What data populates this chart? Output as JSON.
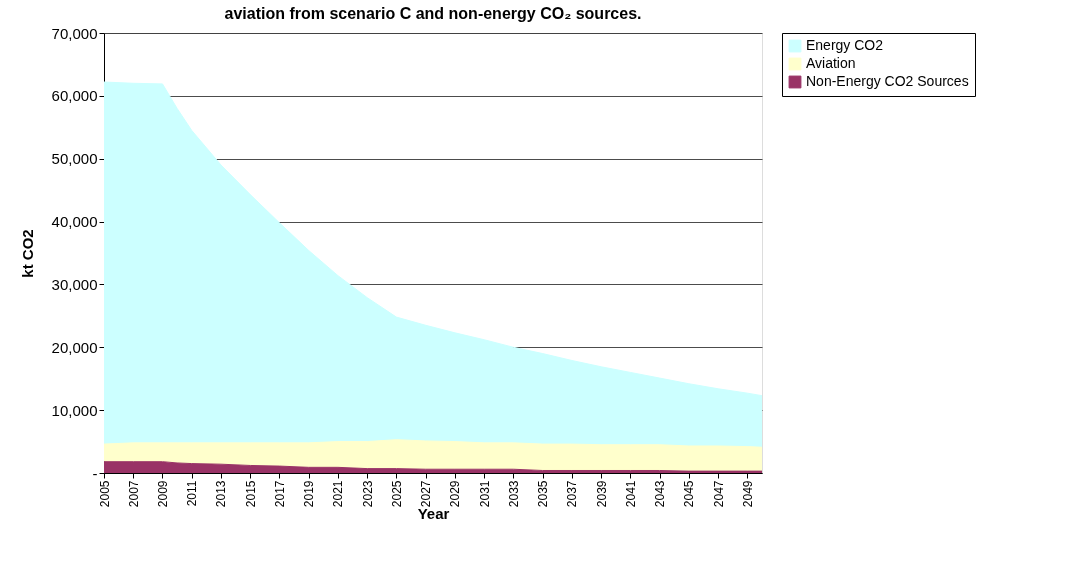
{
  "chart_data": {
    "type": "area",
    "title": "aviation from scenario C and non-energy CO₂ sources.",
    "xlabel": "Year",
    "ylabel": "kt CO2",
    "stacked": true,
    "x": [
      2005,
      2007,
      2009,
      2010,
      2011,
      2013,
      2015,
      2017,
      2019,
      2021,
      2023,
      2025,
      2027,
      2029,
      2031,
      2033,
      2035,
      2037,
      2039,
      2041,
      2043,
      2045,
      2047,
      2049,
      2050
    ],
    "series": [
      {
        "name": "Non-Energy CO2 Sources",
        "color": "#993366",
        "values": [
          1800,
          1800,
          1800,
          1600,
          1500,
          1400,
          1200,
          1100,
          900,
          900,
          700,
          700,
          600,
          600,
          600,
          600,
          400,
          400,
          400,
          400,
          400,
          300,
          300,
          300,
          300
        ]
      },
      {
        "name": "Aviation",
        "color": "#ffffcc",
        "values": [
          2800,
          3000,
          3000,
          3200,
          3300,
          3400,
          3600,
          3700,
          3900,
          4100,
          4300,
          4600,
          4500,
          4400,
          4200,
          4200,
          4200,
          4200,
          4100,
          4100,
          4100,
          4000,
          4000,
          3900,
          3800
        ]
      },
      {
        "name": "Energy CO2",
        "color": "#ccffff",
        "values": [
          57600,
          57200,
          57100,
          53200,
          49700,
          44200,
          39500,
          35000,
          30600,
          26400,
          22900,
          19500,
          18400,
          17300,
          16400,
          15200,
          14400,
          13300,
          12400,
          11500,
          10600,
          9900,
          9100,
          8500,
          8200
        ]
      }
    ],
    "xlim": [
      2005,
      2050
    ],
    "xticks": [
      2005,
      2007,
      2009,
      2011,
      2013,
      2015,
      2017,
      2019,
      2021,
      2023,
      2025,
      2027,
      2029,
      2031,
      2033,
      2035,
      2037,
      2039,
      2041,
      2043,
      2045,
      2047,
      2049
    ],
    "ylim": [
      0,
      70000
    ],
    "yticks": [
      {
        "value": 0,
        "label": "-"
      },
      {
        "value": 10000,
        "label": "10,000"
      },
      {
        "value": 20000,
        "label": "20,000"
      },
      {
        "value": 30000,
        "label": "30,000"
      },
      {
        "value": 40000,
        "label": "40,000"
      },
      {
        "value": 50000,
        "label": "50,000"
      },
      {
        "value": 60000,
        "label": "60,000"
      },
      {
        "value": 70000,
        "label": "70,000"
      }
    ],
    "grid": "y",
    "legend": "right"
  }
}
